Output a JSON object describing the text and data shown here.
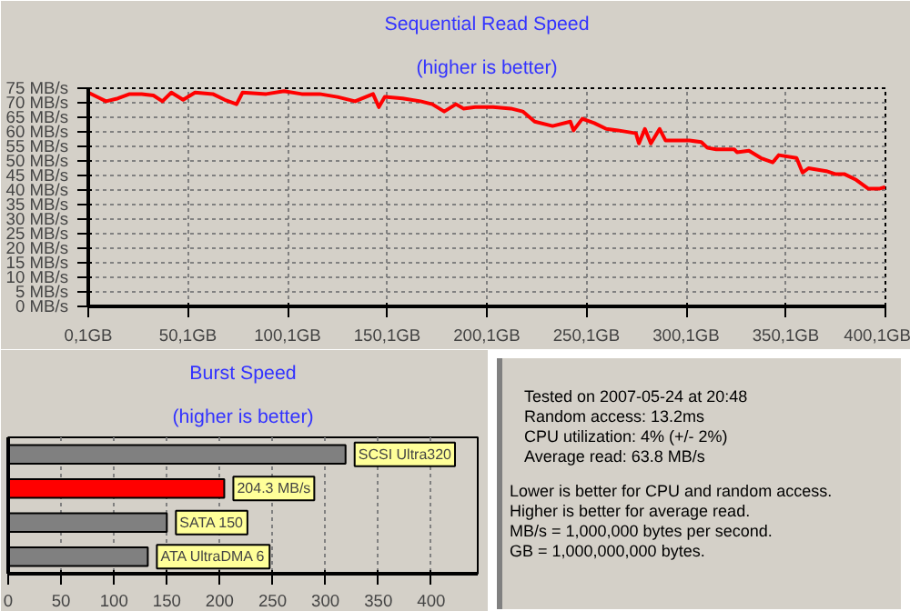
{
  "chart_data": [
    {
      "type": "line",
      "title": "Sequential Read Speed",
      "subtitle": "(higher is better)",
      "x": [
        0.1,
        6.1,
        9.0,
        15.0,
        20.9,
        26.9,
        32.8,
        37.3,
        41.8,
        47.7,
        53.7,
        62.6,
        68.6,
        74.5,
        77.5,
        89.4,
        98.3,
        107.2,
        116.2,
        125.1,
        134.0,
        143.0,
        145.9,
        148.9,
        157.8,
        166.8,
        172.7,
        178.7,
        184.6,
        188.3,
        194.3,
        203.2,
        212.2,
        218.1,
        224.1,
        233.1,
        242.0,
        243.6,
        248.0,
        254.0,
        260.0,
        265.9,
        274.9,
        276.4,
        279.4,
        282.4,
        286.8,
        289.8,
        301.8,
        307.7,
        310.8,
        315.2,
        324.2,
        325.6,
        331.6,
        337.6,
        343.6,
        346.6,
        355.5,
        358.5,
        361.5,
        370.4,
        374.9,
        379.4,
        385.4,
        391.4,
        397.3,
        400.0
      ],
      "series": [
        {
          "color": "#ff0000",
          "values": [
            73.5,
            71.5,
            70.5,
            71.5,
            73,
            73,
            72.5,
            70.5,
            73.5,
            71,
            73.5,
            73,
            71,
            69.5,
            73.5,
            73,
            74,
            73,
            73,
            72,
            70.5,
            73,
            68.5,
            72,
            71.5,
            70.5,
            69.5,
            67,
            69.5,
            68,
            68.5,
            68.5,
            68,
            67,
            63.5,
            62,
            63.5,
            60.5,
            64.5,
            63,
            61,
            60.5,
            59.5,
            56,
            61,
            56,
            61,
            57,
            57,
            56.5,
            54.5,
            54,
            54,
            53,
            53.5,
            51,
            49.5,
            52,
            51,
            46,
            47.5,
            46.5,
            45.5,
            45.5,
            43.5,
            40.5,
            40.5,
            41
          ]
        }
      ],
      "xlim": [
        0.1,
        400.1
      ],
      "ylim": [
        0,
        75
      ],
      "xticks": [
        {
          "value": 0.1,
          "label": "0,1GB"
        },
        {
          "value": 50.1,
          "label": "50,1GB"
        },
        {
          "value": 100.1,
          "label": "100,1GB"
        },
        {
          "value": 150.1,
          "label": "150,1GB"
        },
        {
          "value": 200.1,
          "label": "200,1GB"
        },
        {
          "value": 250.1,
          "label": "250,1GB"
        },
        {
          "value": 300.1,
          "label": "300,1GB"
        },
        {
          "value": 350.1,
          "label": "350,1GB"
        },
        {
          "value": 400.1,
          "label": "400,1GB"
        }
      ],
      "yticks": [
        {
          "value": 0,
          "label": "0 MB/s"
        },
        {
          "value": 5,
          "label": "5 MB/s"
        },
        {
          "value": 10,
          "label": "10 MB/s"
        },
        {
          "value": 15,
          "label": "15 MB/s"
        },
        {
          "value": 20,
          "label": "20 MB/s"
        },
        {
          "value": 25,
          "label": "25 MB/s"
        },
        {
          "value": 30,
          "label": "30 MB/s"
        },
        {
          "value": 35,
          "label": "35 MB/s"
        },
        {
          "value": 40,
          "label": "40 MB/s"
        },
        {
          "value": 45,
          "label": "45 MB/s"
        },
        {
          "value": 50,
          "label": "50 MB/s"
        },
        {
          "value": 55,
          "label": "55 MB/s"
        },
        {
          "value": 60,
          "label": "60 MB/s"
        },
        {
          "value": 65,
          "label": "65 MB/s"
        },
        {
          "value": 70,
          "label": "70 MB/s"
        },
        {
          "value": 75,
          "label": "75 MB/s"
        }
      ],
      "grid": true,
      "line_style": "solid"
    },
    {
      "type": "bar",
      "orientation": "horizontal",
      "title": "Burst Speed",
      "subtitle": "(higher is better)",
      "categories": [
        "SCSI Ultra320",
        null,
        "SATA 150",
        "ATA UltraDMA 6"
      ],
      "values": [
        319,
        204.3,
        150,
        132
      ],
      "colors": [
        "#808080",
        "#ff0000",
        "#808080",
        "#808080"
      ],
      "value_labels": [
        null,
        "204.3 MB/s",
        null,
        null
      ],
      "xlim": [
        0,
        444
      ],
      "xticks": [
        0,
        50,
        100,
        150,
        200,
        250,
        300,
        350,
        400
      ],
      "grid": "x",
      "tick_labels": "x"
    },
    {
      "type": "other",
      "annotations": [
        "Tested on 2007-05-24 at 20:48",
        "Random access: 13.2ms",
        "CPU utilization: 4% (+/- 2%)",
        "Average read: 63.8 MB/s",
        "Lower is better for CPU and random access.",
        "Higher is better for average read.",
        "MB/s = 1,000,000 bytes per second.",
        "GB = 1,000,000,000 bytes."
      ]
    }
  ]
}
